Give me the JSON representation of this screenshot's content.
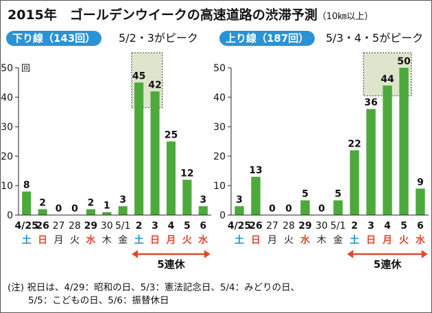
{
  "header": {
    "title": "2015年　ゴールデンウイークの高速道路の渋滞予測",
    "subtitle": "（10㎞以上）"
  },
  "note": {
    "line1": "(注) 祝日は、4/29：昭和の日、5/3：憲法記念日、5/4：みどりの日、",
    "line2": "5/5：こどもの日、5/6：振替休日"
  },
  "colors": {
    "bar": "#4caa3c",
    "weekday": "#222222",
    "saturday": "#1a8fd6",
    "holiday": "#e0482c",
    "badge": "#2a93d5",
    "highlight_fill": "#dde6cc",
    "arrow": "#e0482c"
  },
  "chart_data": [
    {
      "type": "bar",
      "panel_label": "下り線（143回）",
      "peak_label": "5/2・3がピーク",
      "ylabel": "回",
      "ylim": [
        0,
        50
      ],
      "yticks": [
        0,
        10,
        20,
        30,
        40,
        50
      ],
      "grid": false,
      "categories": [
        "4/25",
        "26",
        "27",
        "28",
        "29",
        "30",
        "5/1",
        "2",
        "3",
        "4",
        "5",
        "6"
      ],
      "weekdays": [
        "土",
        "日",
        "月",
        "火",
        "水",
        "木",
        "金",
        "土",
        "日",
        "月",
        "火",
        "水"
      ],
      "day_types": [
        "sat",
        "hol",
        "wd",
        "wd",
        "hol",
        "wd",
        "wd",
        "sat",
        "hol",
        "hol",
        "hol",
        "hol"
      ],
      "values": [
        8,
        2,
        0,
        0,
        2,
        1,
        3,
        45,
        42,
        25,
        12,
        3
      ],
      "peak_categories": [
        "2",
        "3"
      ],
      "holiday_span": [
        "2",
        "6"
      ],
      "holiday_label": "5連休"
    },
    {
      "type": "bar",
      "panel_label": "上り線（187回）",
      "peak_label": "5/3・4・5がピーク",
      "ylabel": "",
      "ylim": [
        0,
        50
      ],
      "yticks": [
        0,
        10,
        20,
        30,
        40,
        50
      ],
      "grid": false,
      "categories": [
        "4/25",
        "26",
        "27",
        "28",
        "29",
        "30",
        "5/1",
        "2",
        "3",
        "4",
        "5",
        "6"
      ],
      "weekdays": [
        "土",
        "日",
        "月",
        "火",
        "水",
        "木",
        "金",
        "土",
        "日",
        "月",
        "火",
        "水"
      ],
      "day_types": [
        "sat",
        "hol",
        "wd",
        "wd",
        "hol",
        "wd",
        "wd",
        "sat",
        "hol",
        "hol",
        "hol",
        "hol"
      ],
      "values": [
        3,
        13,
        0,
        0,
        5,
        0,
        5,
        22,
        36,
        44,
        50,
        9
      ],
      "peak_categories": [
        "3",
        "4",
        "5"
      ],
      "holiday_span": [
        "2",
        "6"
      ],
      "holiday_label": "5連休"
    }
  ]
}
